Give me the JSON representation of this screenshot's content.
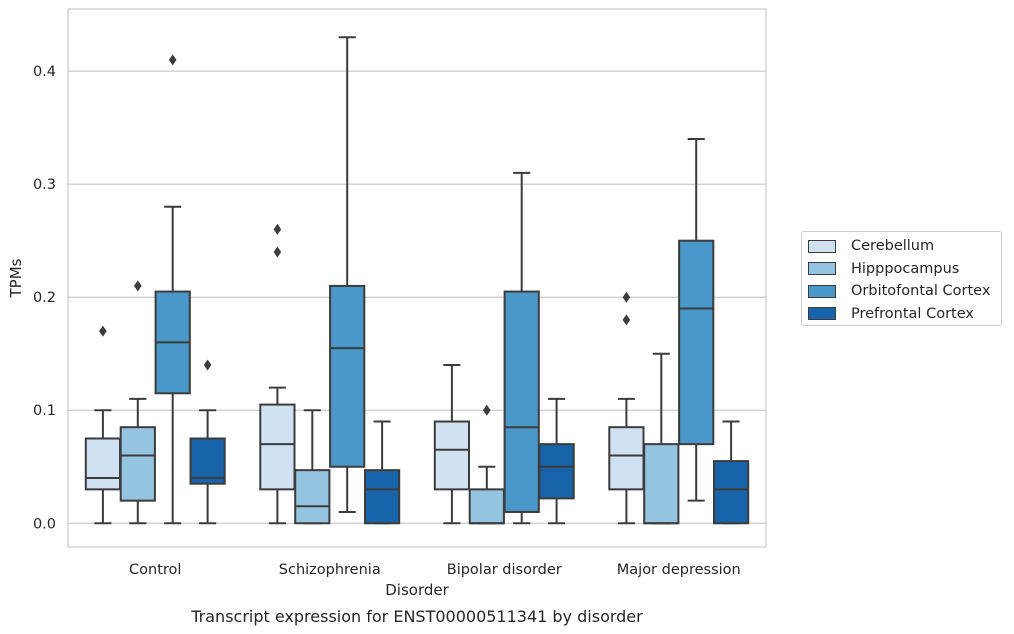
{
  "chart_data": {
    "type": "box",
    "title": "Transcript expression for ENST00000511341 by disorder",
    "xlabel": "Disorder",
    "ylabel": "TPMs",
    "ylim": [
      -0.021,
      0.455
    ],
    "yticks": [
      0.0,
      0.1,
      0.2,
      0.3,
      0.4
    ],
    "ytick_labels": [
      "0.0",
      "0.1",
      "0.2",
      "0.3",
      "0.4"
    ],
    "grid": "horizontal",
    "legend_position": "right",
    "categories": [
      "Control",
      "Schizophrenia",
      "Bipolar disorder",
      "Major depression"
    ],
    "series": [
      {
        "name": "Cerebellum",
        "color": "#d0e1f2",
        "boxes": [
          {
            "whisker_low": 0.0,
            "q1": 0.03,
            "median": 0.04,
            "q3": 0.075,
            "whisker_high": 0.1,
            "outliers": [
              0.17
            ]
          },
          {
            "whisker_low": 0.0,
            "q1": 0.03,
            "median": 0.07,
            "q3": 0.105,
            "whisker_high": 0.12,
            "outliers": [
              0.24,
              0.26
            ]
          },
          {
            "whisker_low": 0.0,
            "q1": 0.03,
            "median": 0.065,
            "q3": 0.09,
            "whisker_high": 0.14,
            "outliers": []
          },
          {
            "whisker_low": 0.0,
            "q1": 0.03,
            "median": 0.06,
            "q3": 0.085,
            "whisker_high": 0.11,
            "outliers": [
              0.18,
              0.2
            ]
          }
        ]
      },
      {
        "name": "Hipppocampus",
        "color": "#94c4df",
        "boxes": [
          {
            "whisker_low": 0.0,
            "q1": 0.02,
            "median": 0.06,
            "q3": 0.085,
            "whisker_high": 0.11,
            "outliers": [
              0.21
            ]
          },
          {
            "whisker_low": 0.0,
            "q1": 0.0,
            "median": 0.015,
            "q3": 0.047,
            "whisker_high": 0.1,
            "outliers": []
          },
          {
            "whisker_low": 0.0,
            "q1": 0.0,
            "median": 0.0,
            "q3": 0.03,
            "whisker_high": 0.05,
            "outliers": [
              0.1
            ]
          },
          {
            "whisker_low": 0.0,
            "q1": 0.0,
            "median": 0.0,
            "q3": 0.07,
            "whisker_high": 0.15,
            "outliers": []
          }
        ]
      },
      {
        "name": "Orbitofontal Cortex",
        "color": "#4a98c9",
        "boxes": [
          {
            "whisker_low": 0.0,
            "q1": 0.115,
            "median": 0.16,
            "q3": 0.205,
            "whisker_high": 0.28,
            "outliers": [
              0.41
            ]
          },
          {
            "whisker_low": 0.01,
            "q1": 0.05,
            "median": 0.155,
            "q3": 0.21,
            "whisker_high": 0.43,
            "outliers": []
          },
          {
            "whisker_low": 0.0,
            "q1": 0.01,
            "median": 0.085,
            "q3": 0.205,
            "whisker_high": 0.31,
            "outliers": []
          },
          {
            "whisker_low": 0.02,
            "q1": 0.07,
            "median": 0.19,
            "q3": 0.25,
            "whisker_high": 0.34,
            "outliers": []
          }
        ]
      },
      {
        "name": "Prefrontal Cortex",
        "color": "#1764ab",
        "boxes": [
          {
            "whisker_low": 0.0,
            "q1": 0.035,
            "median": 0.04,
            "q3": 0.075,
            "whisker_high": 0.1,
            "outliers": [
              0.14
            ]
          },
          {
            "whisker_low": 0.0,
            "q1": 0.0,
            "median": 0.03,
            "q3": 0.047,
            "whisker_high": 0.09,
            "outliers": []
          },
          {
            "whisker_low": 0.0,
            "q1": 0.022,
            "median": 0.05,
            "q3": 0.07,
            "whisker_high": 0.11,
            "outliers": []
          },
          {
            "whisker_low": 0.0,
            "q1": 0.0,
            "median": 0.03,
            "q3": 0.055,
            "whisker_high": 0.09,
            "outliers": []
          }
        ]
      }
    ]
  }
}
